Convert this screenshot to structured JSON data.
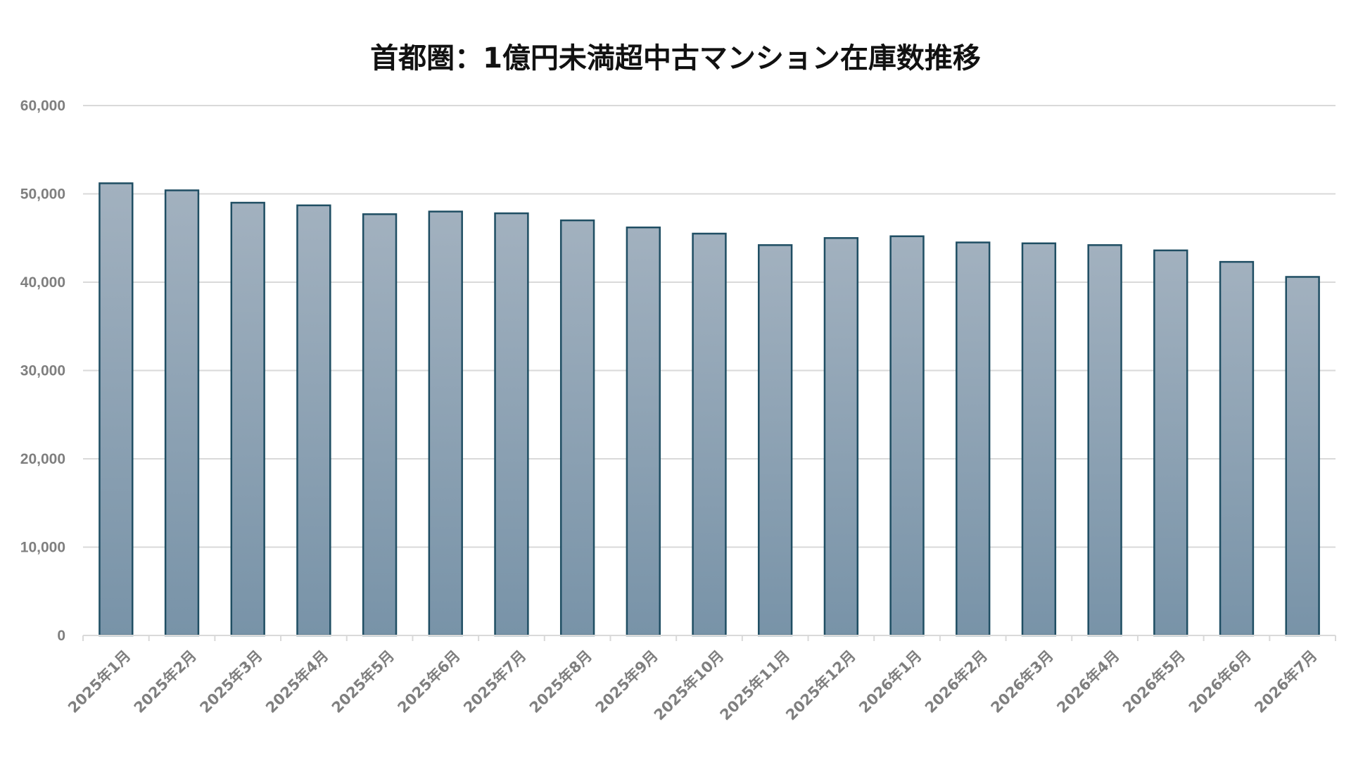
{
  "chart_data": {
    "type": "bar",
    "title": "首都圏：1億円未満超中古マンション在庫数推移",
    "xlabel": "",
    "ylabel": "",
    "ylim": [
      0,
      60000
    ],
    "yticks": [
      "0",
      "10,000",
      "20,000",
      "30,000",
      "40,000",
      "50,000",
      "60,000"
    ],
    "grid": true,
    "legend": "none",
    "bar_color_top": "#a2b1bf",
    "bar_color_bottom": "#7893a8",
    "bar_edge_color": "#1f4e63",
    "categories": [
      "2025年1月",
      "2025年2月",
      "2025年3月",
      "2025年4月",
      "2025年5月",
      "2025年6月",
      "2025年7月",
      "2025年8月",
      "2025年9月",
      "2025年10月",
      "2025年11月",
      "2025年12月",
      "2026年1月",
      "2026年2月",
      "2026年3月",
      "2026年4月",
      "2026年5月",
      "2026年6月",
      "2026年7月"
    ],
    "values": [
      51200,
      50400,
      49000,
      48700,
      47700,
      48000,
      47800,
      47000,
      46200,
      45500,
      44200,
      45000,
      45200,
      44500,
      44400,
      44200,
      43600,
      42300,
      40600
    ]
  }
}
